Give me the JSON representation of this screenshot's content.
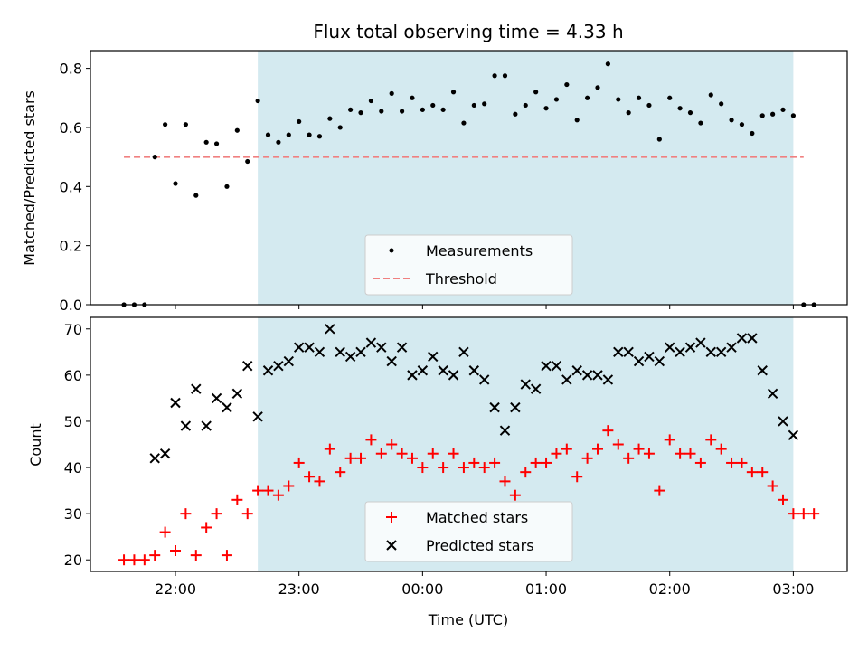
{
  "chart_data": [
    {
      "type": "scatter",
      "title": "Flux total observing time = 4.33 h",
      "xlabel": "",
      "ylabel": "Matched/Predicted stars",
      "x_unit": "UTC time",
      "ylim": [
        0,
        0.86
      ],
      "yticks": [
        "0.0",
        "0.2",
        "0.4",
        "0.6",
        "0.8"
      ],
      "observing_window": [
        "22:40",
        "03:00"
      ],
      "shade_color": "#d4eaf0",
      "threshold": {
        "name": "Threshold",
        "value": 0.5,
        "x_range": [
          "21:35",
          "03:05"
        ],
        "color": "#f08080"
      },
      "series": [
        {
          "name": "Measurements",
          "color": "#000000",
          "x": [
            "21:35",
            "21:40",
            "21:45",
            "21:50",
            "21:55",
            "22:00",
            "22:05",
            "22:10",
            "22:15",
            "22:20",
            "22:25",
            "22:30",
            "22:35",
            "22:40",
            "22:45",
            "22:50",
            "22:55",
            "23:00",
            "23:05",
            "23:10",
            "23:15",
            "23:20",
            "23:25",
            "23:30",
            "23:35",
            "23:40",
            "23:45",
            "23:50",
            "23:55",
            "00:00",
            "00:05",
            "00:10",
            "00:15",
            "00:20",
            "00:25",
            "00:30",
            "00:35",
            "00:40",
            "00:45",
            "00:50",
            "00:55",
            "01:00",
            "01:05",
            "01:10",
            "01:15",
            "01:20",
            "01:25",
            "01:30",
            "01:35",
            "01:40",
            "01:45",
            "01:50",
            "01:55",
            "02:00",
            "02:05",
            "02:10",
            "02:15",
            "02:20",
            "02:25",
            "02:30",
            "02:35",
            "02:40",
            "02:45",
            "02:50",
            "02:55",
            "03:00",
            "03:05",
            "03:10"
          ],
          "values": [
            0.0,
            0.0,
            0.0,
            0.5,
            0.61,
            0.41,
            0.61,
            0.37,
            0.55,
            0.545,
            0.4,
            0.59,
            0.485,
            0.69,
            0.575,
            0.55,
            0.575,
            0.62,
            0.575,
            0.57,
            0.63,
            0.6,
            0.66,
            0.65,
            0.69,
            0.655,
            0.715,
            0.655,
            0.7,
            0.66,
            0.675,
            0.66,
            0.72,
            0.615,
            0.675,
            0.68,
            0.775,
            0.775,
            0.645,
            0.675,
            0.72,
            0.665,
            0.695,
            0.745,
            0.625,
            0.7,
            0.735,
            0.815,
            0.695,
            0.65,
            0.7,
            0.675,
            0.56,
            0.7,
            0.665,
            0.65,
            0.615,
            0.71,
            0.68,
            0.625,
            0.61,
            0.58,
            0.64,
            0.645,
            0.66,
            0.64,
            0.0,
            0.0
          ]
        }
      ]
    },
    {
      "type": "scatter",
      "title": "",
      "xlabel": "Time (UTC)",
      "ylabel": "Count",
      "ylim": [
        17.5,
        72.5
      ],
      "yticks": [
        "20",
        "30",
        "40",
        "50",
        "60",
        "70"
      ],
      "xticks": [
        "22:00",
        "23:00",
        "00:00",
        "01:00",
        "02:00",
        "03:00"
      ],
      "observing_window": [
        "22:40",
        "03:00"
      ],
      "shade_color": "#d4eaf0",
      "series": [
        {
          "name": "Matched stars",
          "marker": "plus",
          "color": "#ff0000",
          "x": [
            "21:35",
            "21:40",
            "21:45",
            "21:50",
            "21:55",
            "22:00",
            "22:05",
            "22:10",
            "22:15",
            "22:20",
            "22:25",
            "22:30",
            "22:35",
            "22:40",
            "22:45",
            "22:50",
            "22:55",
            "23:00",
            "23:05",
            "23:10",
            "23:15",
            "23:20",
            "23:25",
            "23:30",
            "23:35",
            "23:40",
            "23:45",
            "23:50",
            "23:55",
            "00:00",
            "00:05",
            "00:10",
            "00:15",
            "00:20",
            "00:25",
            "00:30",
            "00:35",
            "00:40",
            "00:45",
            "00:50",
            "00:55",
            "01:00",
            "01:05",
            "01:10",
            "01:15",
            "01:20",
            "01:25",
            "01:30",
            "01:35",
            "01:40",
            "01:45",
            "01:50",
            "01:55",
            "02:00",
            "02:05",
            "02:10",
            "02:15",
            "02:20",
            "02:25",
            "02:30",
            "02:35",
            "02:40",
            "02:45",
            "02:50",
            "02:55",
            "03:00",
            "03:05",
            "03:10"
          ],
          "values": [
            20,
            20,
            20,
            21,
            26,
            22,
            30,
            21,
            27,
            30,
            21,
            33,
            30,
            35,
            35,
            34,
            36,
            41,
            38,
            37,
            44,
            39,
            42,
            42,
            46,
            43,
            45,
            43,
            42,
            40,
            43,
            40,
            43,
            40,
            41,
            40,
            41,
            37,
            34,
            39,
            41,
            41,
            43,
            44,
            38,
            42,
            44,
            48,
            45,
            42,
            44,
            43,
            35,
            46,
            43,
            43,
            41,
            46,
            44,
            41,
            41,
            39,
            39,
            36,
            33,
            30,
            30,
            30
          ]
        },
        {
          "name": "Predicted stars",
          "marker": "x",
          "color": "#000000",
          "x": [
            "21:50",
            "21:55",
            "22:00",
            "22:05",
            "22:10",
            "22:15",
            "22:20",
            "22:25",
            "22:30",
            "22:35",
            "22:40",
            "22:45",
            "22:50",
            "22:55",
            "23:00",
            "23:05",
            "23:10",
            "23:15",
            "23:20",
            "23:25",
            "23:30",
            "23:35",
            "23:40",
            "23:45",
            "23:50",
            "23:55",
            "00:00",
            "00:05",
            "00:10",
            "00:15",
            "00:20",
            "00:25",
            "00:30",
            "00:35",
            "00:40",
            "00:45",
            "00:50",
            "00:55",
            "01:00",
            "01:05",
            "01:10",
            "01:15",
            "01:20",
            "01:25",
            "01:30",
            "01:35",
            "01:40",
            "01:45",
            "01:50",
            "01:55",
            "02:00",
            "02:05",
            "02:10",
            "02:15",
            "02:20",
            "02:25",
            "02:30",
            "02:35",
            "02:40",
            "02:45",
            "02:50",
            "02:55",
            "03:00"
          ],
          "values": [
            42,
            43,
            54,
            49,
            57,
            49,
            55,
            53,
            56,
            62,
            51,
            61,
            62,
            63,
            66,
            66,
            65,
            70,
            65,
            64,
            65,
            67,
            66,
            63,
            66,
            60,
            61,
            64,
            61,
            60,
            65,
            61,
            59,
            53,
            48,
            53,
            58,
            57,
            62,
            62,
            59,
            61,
            60,
            60,
            59,
            65,
            65,
            63,
            64,
            63,
            66,
            65,
            66,
            67,
            65,
            65,
            66,
            68,
            68,
            61,
            56,
            50,
            47
          ]
        }
      ]
    }
  ]
}
